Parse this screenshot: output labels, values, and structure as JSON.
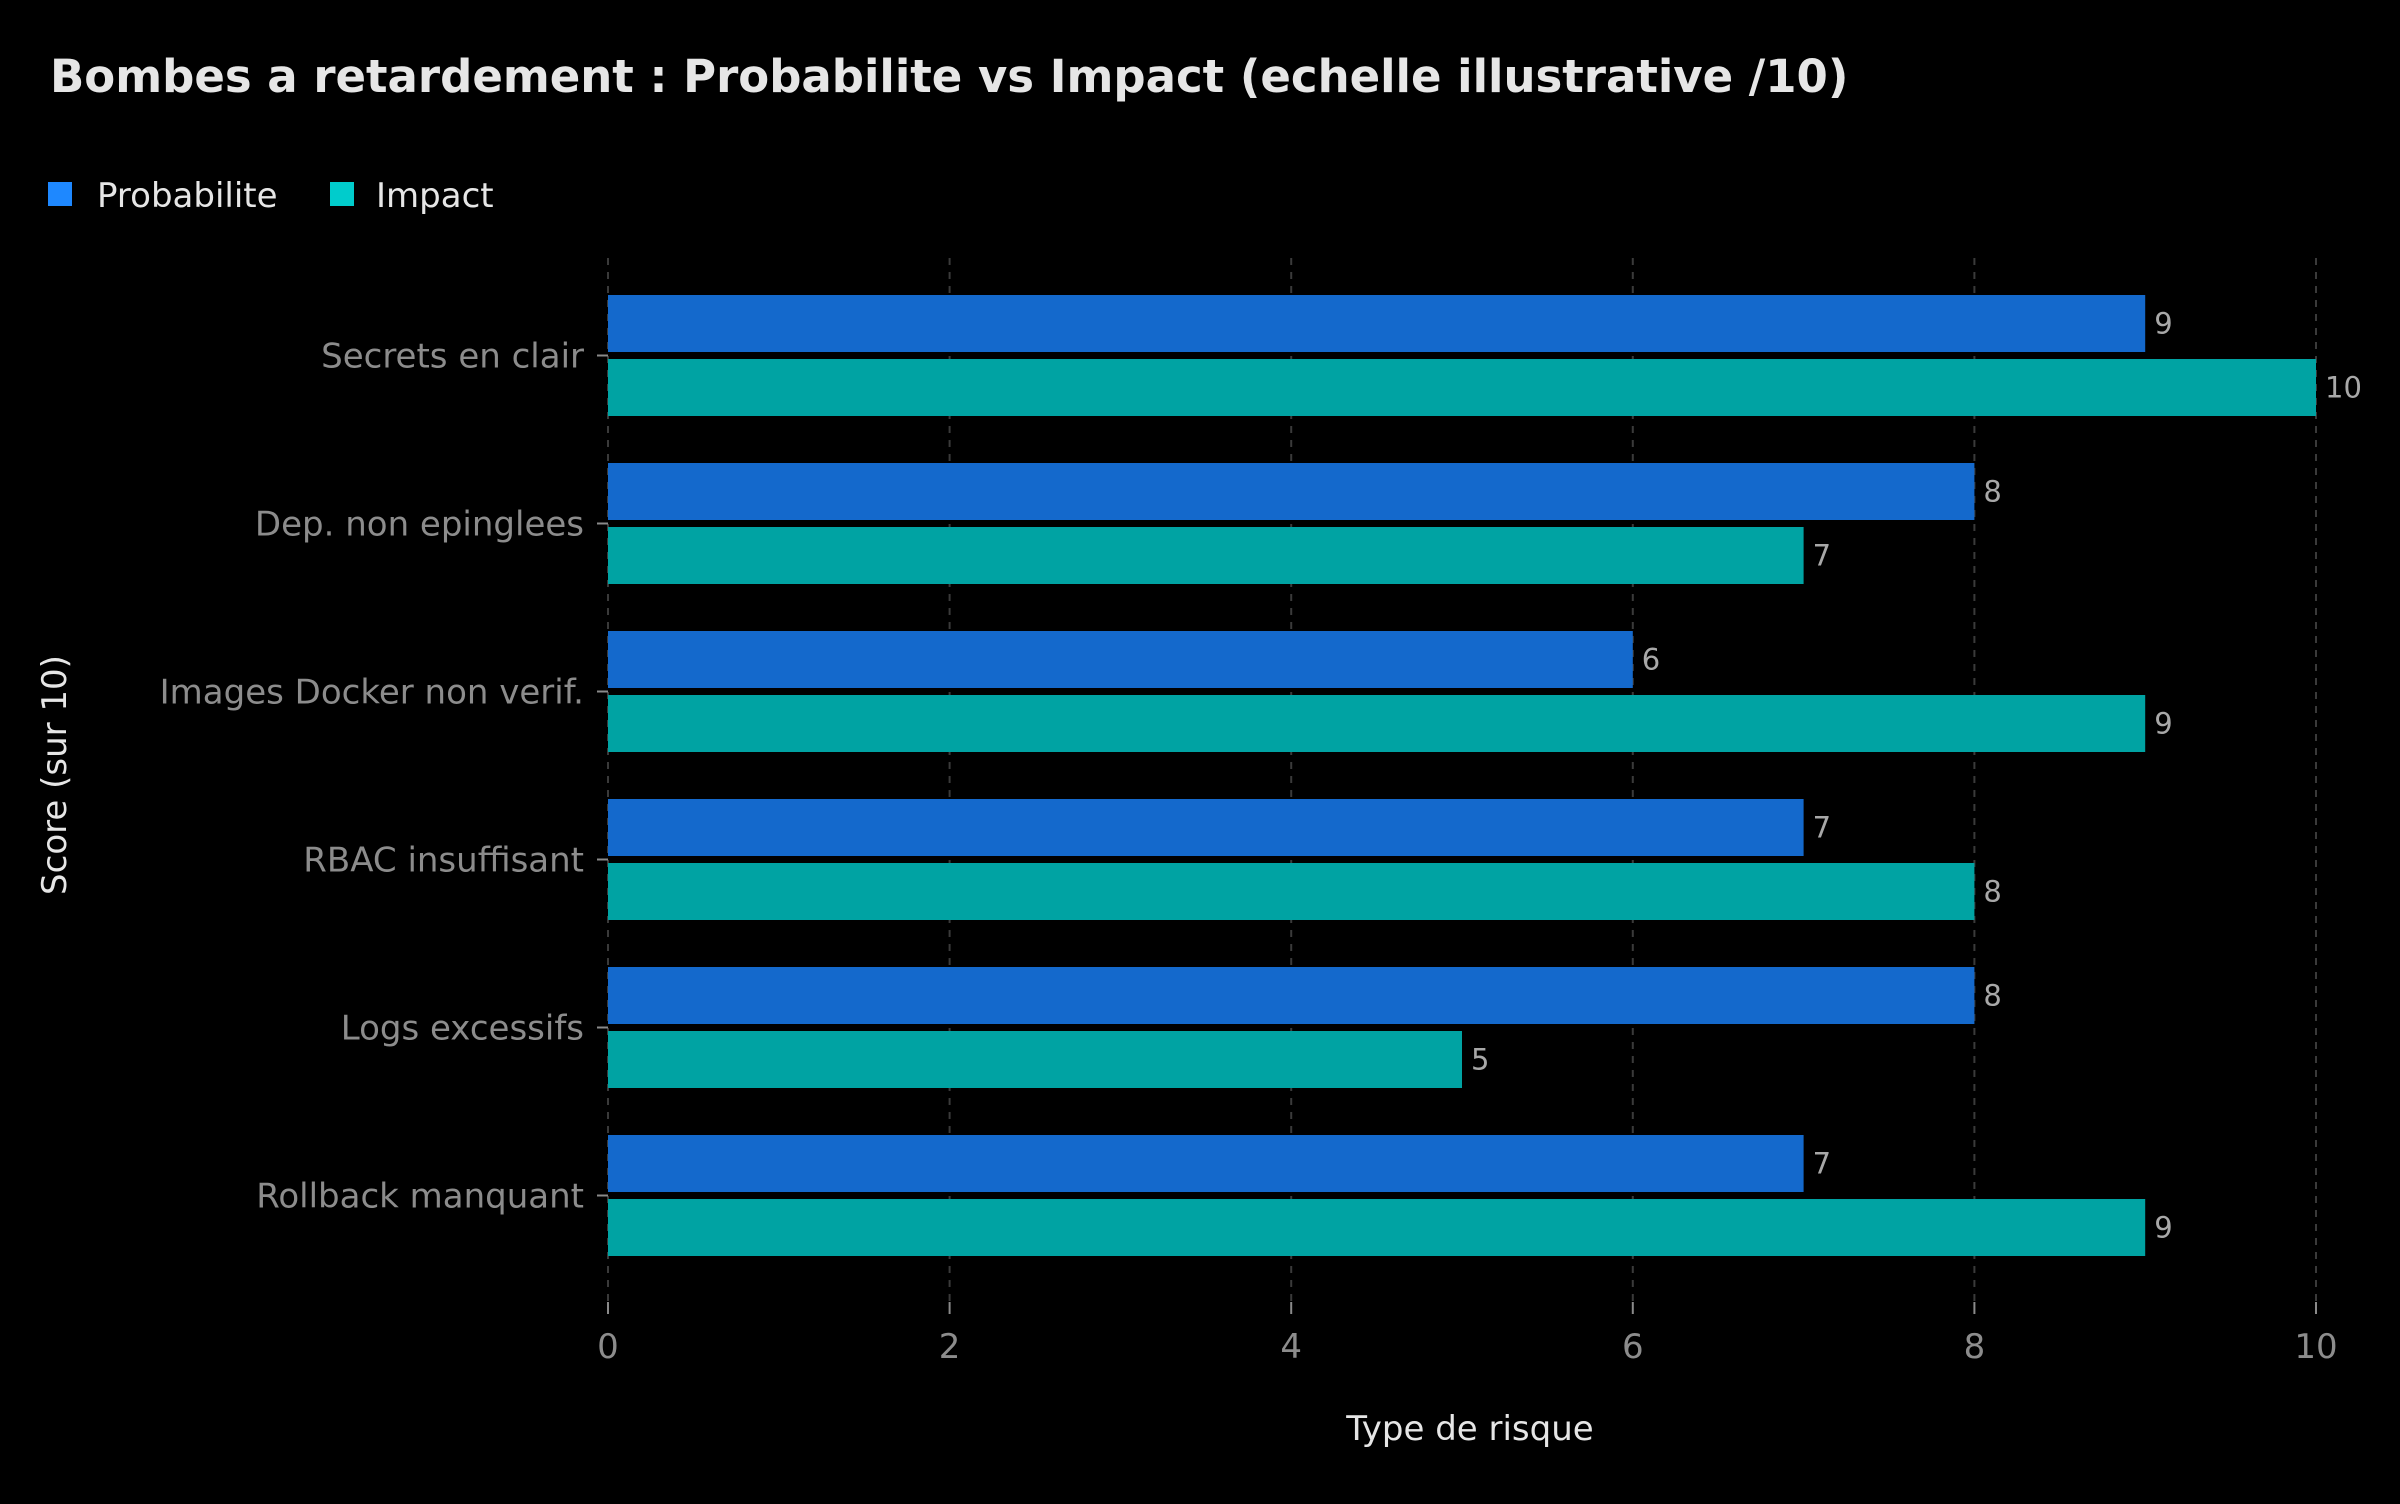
{
  "chart_data": {
    "type": "bar",
    "orientation": "horizontal",
    "title": "Bombes a retardement : Probabilite vs Impact (echelle illustrative /10)",
    "xlabel": "Type de risque",
    "ylabel": "Score (sur 10)",
    "categories": [
      "Secrets en clair",
      "Dep. non epinglees",
      "Images Docker non verif.",
      "RBAC insuffisant",
      "Logs excessifs",
      "Rollback manquant"
    ],
    "series": [
      {
        "name": "Probabilite",
        "color": "#1469cc",
        "legend_color": "#1e88ff",
        "values": [
          9,
          8,
          6,
          7,
          8,
          7
        ]
      },
      {
        "name": "Impact",
        "color": "#00a3a3",
        "legend_color": "#00cccc",
        "values": [
          10,
          7,
          9,
          8,
          5,
          9
        ]
      }
    ],
    "xlim": [
      0,
      10
    ],
    "xticks": [
      0,
      2,
      4,
      6,
      8,
      10
    ],
    "tick_labels": [
      "0",
      "2",
      "4",
      "6",
      "8",
      "10"
    ],
    "grid": "vertical dashed",
    "legend_position": "top-left",
    "background": "#000000"
  }
}
